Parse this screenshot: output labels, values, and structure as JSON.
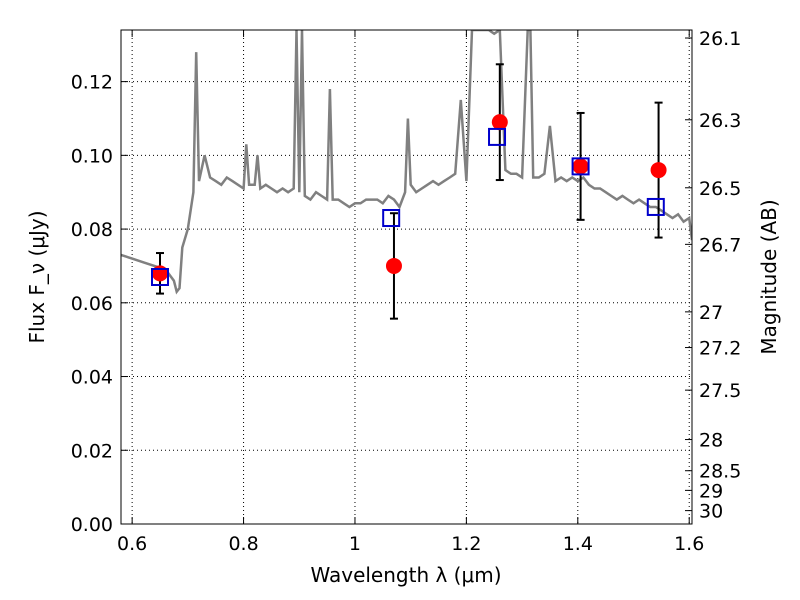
{
  "chart_data": {
    "type": "scatter",
    "xlabel": "Wavelength λ (μm)",
    "ylabel": "Flux F_ν (μJy)",
    "y2label": "Magnitude (AB)",
    "xlim": [
      0.58,
      1.605
    ],
    "ylim": [
      0.0,
      0.134
    ],
    "grid": true,
    "x_ticks": [
      "0.6",
      "0.8",
      "1",
      "1.2",
      "1.4",
      "1.6"
    ],
    "y_ticks": [
      "0.00",
      "0.02",
      "0.04",
      "0.06",
      "0.08",
      "0.10",
      "0.12"
    ],
    "y2_ticks": [
      "26.1",
      "26.3",
      "26.5",
      "26.7",
      "27",
      "27.2",
      "27.5",
      "28",
      "28.5",
      "29",
      "30"
    ],
    "colors": {
      "spectrum": "#808080",
      "observed": "#ff0000",
      "model": "#0000cc",
      "errorbar": "#000000",
      "grid": "#000000"
    },
    "series": [
      {
        "kind": "line",
        "x": [
          0.58,
          0.6,
          0.62,
          0.64,
          0.66,
          0.675,
          0.68,
          0.685,
          0.69,
          0.7,
          0.71,
          0.715,
          0.72,
          0.73,
          0.74,
          0.75,
          0.76,
          0.77,
          0.78,
          0.8,
          0.805,
          0.81,
          0.82,
          0.825,
          0.83,
          0.84,
          0.85,
          0.86,
          0.87,
          0.88,
          0.89,
          0.895,
          0.9,
          0.905,
          0.91,
          0.92,
          0.93,
          0.94,
          0.95,
          0.955,
          0.96,
          0.97,
          0.98,
          0.99,
          1.0,
          1.01,
          1.02,
          1.03,
          1.04,
          1.05,
          1.06,
          1.07,
          1.08,
          1.09,
          1.095,
          1.1,
          1.11,
          1.12,
          1.13,
          1.14,
          1.15,
          1.16,
          1.17,
          1.18,
          1.19,
          1.2,
          1.21,
          1.22,
          1.23,
          1.24,
          1.25,
          1.26,
          1.27,
          1.28,
          1.29,
          1.3,
          1.31,
          1.315,
          1.32,
          1.33,
          1.34,
          1.35,
          1.36,
          1.37,
          1.38,
          1.39,
          1.4,
          1.41,
          1.42,
          1.43,
          1.44,
          1.45,
          1.46,
          1.47,
          1.48,
          1.49,
          1.5,
          1.51,
          1.52,
          1.53,
          1.54,
          1.55,
          1.56,
          1.57,
          1.58,
          1.59,
          1.6,
          1.605
        ],
        "y": [
          0.073,
          0.072,
          0.071,
          0.07,
          0.069,
          0.066,
          0.063,
          0.064,
          0.075,
          0.08,
          0.09,
          0.128,
          0.093,
          0.1,
          0.094,
          0.093,
          0.092,
          0.094,
          0.093,
          0.091,
          0.103,
          0.092,
          0.092,
          0.1,
          0.091,
          0.092,
          0.091,
          0.09,
          0.091,
          0.09,
          0.091,
          0.134,
          0.09,
          0.134,
          0.089,
          0.088,
          0.09,
          0.089,
          0.088,
          0.118,
          0.088,
          0.088,
          0.087,
          0.086,
          0.087,
          0.087,
          0.088,
          0.088,
          0.088,
          0.087,
          0.089,
          0.088,
          0.086,
          0.09,
          0.11,
          0.092,
          0.09,
          0.091,
          0.092,
          0.093,
          0.092,
          0.093,
          0.094,
          0.095,
          0.115,
          0.093,
          0.134,
          0.134,
          0.134,
          0.134,
          0.133,
          0.134,
          0.096,
          0.095,
          0.095,
          0.094,
          0.134,
          0.134,
          0.094,
          0.094,
          0.095,
          0.108,
          0.093,
          0.094,
          0.093,
          0.094,
          0.093,
          0.094,
          0.092,
          0.091,
          0.091,
          0.09,
          0.089,
          0.088,
          0.089,
          0.088,
          0.087,
          0.088,
          0.087,
          0.086,
          0.086,
          0.085,
          0.084,
          0.083,
          0.084,
          0.082,
          0.083,
          0.077
        ]
      },
      {
        "kind": "scatter",
        "marker": "circle",
        "x": [
          0.65,
          1.07,
          1.26,
          1.405,
          1.545
        ],
        "y": [
          0.068,
          0.07,
          0.109,
          0.097,
          0.096
        ],
        "yerr": [
          0.0055,
          0.0143,
          0.0157,
          0.0145,
          0.0183
        ]
      },
      {
        "kind": "scatter",
        "marker": "square",
        "x": [
          0.65,
          1.065,
          1.255,
          1.405,
          1.54
        ],
        "y": [
          0.067,
          0.083,
          0.105,
          0.097,
          0.086
        ]
      }
    ]
  }
}
